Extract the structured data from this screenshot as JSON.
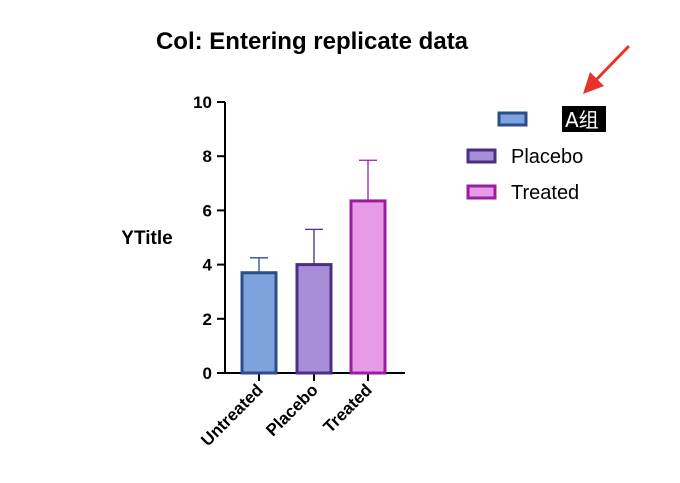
{
  "chart_data": {
    "type": "bar",
    "title": "Col: Entering replicate data",
    "ylabel": "YTitle",
    "xlabel": "",
    "ylim": [
      0,
      10
    ],
    "yticks": [
      0,
      2,
      4,
      6,
      8,
      10
    ],
    "grid": false,
    "categories": [
      "Untreated",
      "Placebo",
      "Treated"
    ],
    "values": [
      3.7,
      4.0,
      6.35
    ],
    "error_upper": [
      0.55,
      1.3,
      1.5
    ],
    "colors": {
      "fill": [
        "#7ea3dc",
        "#a78ed8",
        "#e89ae8"
      ],
      "stroke": [
        "#2b4d8c",
        "#4b2e86",
        "#9b1e9e"
      ]
    },
    "legend": {
      "placement": "right",
      "entries": [
        {
          "label": "A组",
          "fill": "#7ea3dc",
          "stroke": "#2b4d8c",
          "highlighted": true
        },
        {
          "label": "Placebo",
          "fill": "#a78ed8",
          "stroke": "#4b2e86",
          "highlighted": false
        },
        {
          "label": "Treated",
          "fill": "#e89ae8",
          "stroke": "#9b1e9e",
          "highlighted": false
        }
      ]
    },
    "annotation": {
      "type": "arrow",
      "color": "#e8332a",
      "target": "legend-entry-1"
    }
  }
}
